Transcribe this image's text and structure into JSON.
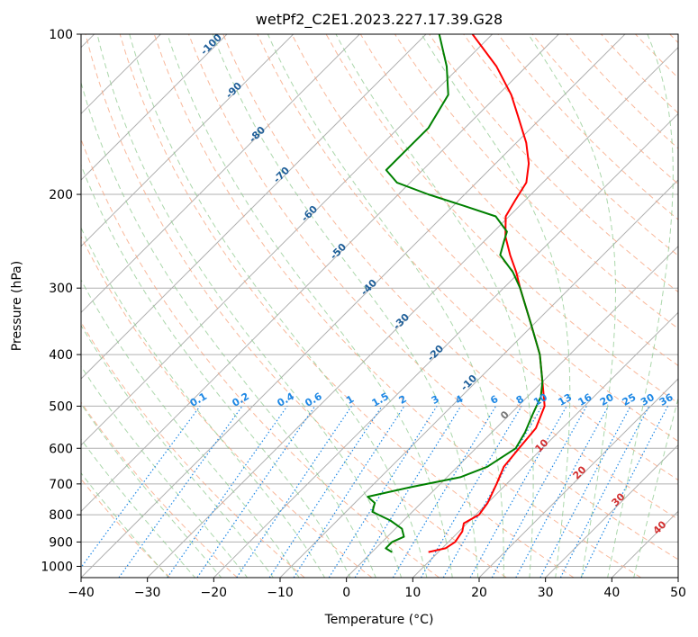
{
  "chart_data": {
    "type": "line",
    "title": "wetPf2_C2E1.2023.227.17.39.G28",
    "xlabel": "Temperature (°C)",
    "ylabel": "Pressure (hPa)",
    "xlim": [
      -40,
      50
    ],
    "ylim": [
      1050,
      100
    ],
    "y_scale": "log",
    "skew": true,
    "grid": true,
    "x_ticks": [
      -40,
      -30,
      -20,
      -10,
      0,
      10,
      20,
      30,
      40,
      50
    ],
    "y_ticks": [
      100,
      200,
      300,
      400,
      500,
      600,
      700,
      800,
      900,
      1000
    ],
    "series": [
      {
        "color": "#ff0000",
        "points": [
          [
            940,
            8.5
          ],
          [
            925,
            10.5
          ],
          [
            900,
            11.0
          ],
          [
            860,
            10.5
          ],
          [
            830,
            9.5
          ],
          [
            800,
            10.5
          ],
          [
            760,
            10.0
          ],
          [
            700,
            8.5
          ],
          [
            650,
            7.0
          ],
          [
            600,
            6.5
          ],
          [
            550,
            6.0
          ],
          [
            500,
            4.0
          ],
          [
            450,
            0.0
          ],
          [
            400,
            -4.5
          ],
          [
            350,
            -10.5
          ],
          [
            300,
            -17.5
          ],
          [
            280,
            -20.5
          ],
          [
            260,
            -24.0
          ],
          [
            240,
            -27.5
          ],
          [
            220,
            -30.5
          ],
          [
            205,
            -31.5
          ],
          [
            190,
            -32.5
          ],
          [
            175,
            -35.0
          ],
          [
            160,
            -38.5
          ],
          [
            145,
            -43.0
          ],
          [
            130,
            -48.0
          ],
          [
            115,
            -54.5
          ],
          [
            100,
            -63.0
          ]
        ]
      },
      {
        "color": "#008000",
        "points": [
          [
            940,
            3.0
          ],
          [
            925,
            1.5
          ],
          [
            900,
            1.5
          ],
          [
            880,
            2.5
          ],
          [
            850,
            1.0
          ],
          [
            820,
            -2.0
          ],
          [
            790,
            -6.0
          ],
          [
            760,
            -7.0
          ],
          [
            740,
            -9.0
          ],
          [
            710,
            -4.0
          ],
          [
            680,
            2.0
          ],
          [
            650,
            4.5
          ],
          [
            600,
            6.0
          ],
          [
            560,
            5.0
          ],
          [
            520,
            3.5
          ],
          [
            480,
            2.0
          ],
          [
            450,
            0.0
          ],
          [
            400,
            -4.5
          ],
          [
            350,
            -10.5
          ],
          [
            300,
            -17.5
          ],
          [
            280,
            -21.0
          ],
          [
            260,
            -25.5
          ],
          [
            245,
            -27.0
          ],
          [
            235,
            -28.0
          ],
          [
            220,
            -32.0
          ],
          [
            210,
            -38.5
          ],
          [
            200,
            -45.5
          ],
          [
            190,
            -52.0
          ],
          [
            180,
            -55.5
          ],
          [
            165,
            -55.5
          ],
          [
            150,
            -55.5
          ],
          [
            130,
            -57.5
          ],
          [
            115,
            -62.0
          ],
          [
            100,
            -68.0
          ]
        ]
      }
    ],
    "dry_adiabat_labels": [
      "-100",
      "-90",
      "-80",
      "-70",
      "-60",
      "-50",
      "-40",
      "-30",
      "-20",
      "-10",
      "0",
      "10",
      "20",
      "30",
      "40"
    ],
    "mixing_ratio_labels": [
      "0.1",
      "0.2",
      "0.4",
      "0.6",
      "1",
      "1.5",
      "2",
      "3",
      "4",
      "6",
      "8",
      "10",
      "13",
      "16",
      "20",
      "25",
      "30",
      "36"
    ]
  },
  "colors": {
    "isotherm": "#b0b0b0",
    "isobar": "#b0b0b0",
    "dry_adiabat": "#f7a07a",
    "moist_adiabat": "#8fca8f",
    "mixing_ratio": "#1e88e5",
    "dry_label": "#1f5f99",
    "mixing_label": "#1e88e5",
    "moist_label_warm": "#d32f2f",
    "moist_label_zero": "#777777"
  }
}
